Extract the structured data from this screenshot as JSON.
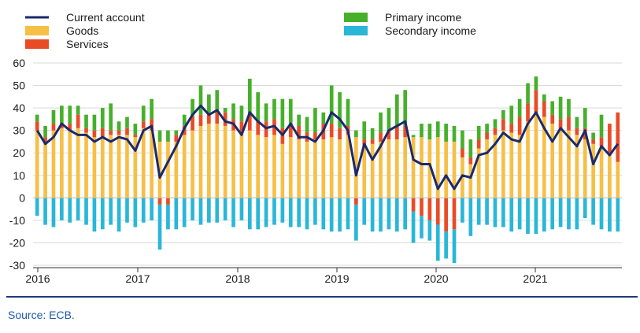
{
  "chart_data": {
    "type": "bar",
    "title": "",
    "xlabel": "",
    "ylabel": "",
    "ylim": [
      -30,
      60
    ],
    "yticks": [
      60,
      50,
      40,
      30,
      20,
      10,
      0,
      -10,
      -20,
      -30
    ],
    "xticks": [
      "2016",
      "2017",
      "2018",
      "2019",
      "2020",
      "2021"
    ],
    "periods": 72,
    "series": [
      {
        "name": "Current account",
        "kind": "line",
        "color": "#1b2a6b",
        "values": [
          30,
          24,
          27,
          33,
          30,
          28,
          28,
          25,
          27,
          25,
          27,
          26,
          21,
          30,
          32,
          9,
          16,
          23,
          31,
          37,
          41,
          37,
          39,
          34,
          33,
          28,
          38,
          34,
          31,
          32,
          28,
          33,
          27,
          27,
          25,
          30,
          38,
          35,
          30,
          10,
          24,
          17,
          23,
          30,
          32,
          34,
          17,
          15,
          15,
          4,
          10,
          4,
          10,
          9,
          19,
          20,
          24,
          29,
          26,
          25,
          33,
          38,
          31,
          25,
          31,
          27,
          23,
          30,
          15,
          23,
          19,
          24
        ]
      },
      {
        "name": "Goods",
        "kind": "stacked-bar",
        "color": "#f6bf46",
        "values": [
          30,
          25,
          30,
          31,
          30,
          31,
          29,
          27,
          27,
          28,
          28,
          28,
          27,
          31,
          30,
          25,
          25,
          25,
          28,
          30,
          32,
          33,
          33,
          32,
          30,
          29,
          30,
          28,
          27,
          28,
          24,
          27,
          26,
          25,
          26,
          26,
          27,
          26,
          28,
          27,
          23,
          24,
          25,
          26,
          26,
          27,
          27,
          27,
          26,
          27,
          25,
          25,
          18,
          15,
          22,
          26,
          28,
          30,
          29,
          28,
          34,
          38,
          36,
          33,
          30,
          30,
          28,
          26,
          24,
          23,
          20,
          16
        ]
      },
      {
        "name": "Services",
        "kind": "stacked-bar",
        "color": "#e94b25",
        "values": [
          4,
          2,
          3,
          2,
          3,
          6,
          2,
          3,
          4,
          2,
          2,
          3,
          1,
          3,
          5,
          -3,
          -3,
          3,
          4,
          6,
          5,
          5,
          5,
          6,
          5,
          5,
          7,
          6,
          7,
          7,
          7,
          5,
          6,
          4,
          3,
          7,
          6,
          5,
          4,
          -3,
          3,
          2,
          4,
          4,
          6,
          5,
          -6,
          -8,
          -10,
          -12,
          -15,
          -14,
          4,
          3,
          4,
          3,
          3,
          5,
          4,
          8,
          8,
          10,
          7,
          4,
          5,
          6,
          3,
          5,
          2,
          4,
          13,
          22
        ]
      },
      {
        "name": "Primary income",
        "kind": "stacked-bar",
        "color": "#46b02a",
        "values": [
          3,
          5,
          6,
          8,
          8,
          4,
          6,
          7,
          9,
          12,
          4,
          5,
          5,
          7,
          9,
          5,
          5,
          2,
          5,
          8,
          13,
          8,
          10,
          2,
          7,
          7,
          16,
          13,
          8,
          9,
          13,
          12,
          5,
          7,
          11,
          5,
          17,
          16,
          12,
          3,
          8,
          5,
          9,
          10,
          14,
          16,
          1,
          6,
          7,
          7,
          8,
          7,
          8,
          8,
          6,
          4,
          4,
          4,
          8,
          8,
          9,
          6,
          3,
          6,
          10,
          8,
          5,
          9,
          3,
          10,
          0,
          0
        ]
      },
      {
        "name": "Secondary income",
        "kind": "stacked-bar",
        "color": "#29b7d8",
        "values": [
          -8,
          -12,
          -13,
          -10,
          -11,
          -10,
          -12,
          -15,
          -14,
          -12,
          -15,
          -11,
          -13,
          -11,
          -10,
          -20,
          -11,
          -14,
          -13,
          -10,
          -12,
          -11,
          -11,
          -10,
          -13,
          -10,
          -14,
          -14,
          -13,
          -12,
          -11,
          -13,
          -13,
          -14,
          -12,
          -14,
          -15,
          -15,
          -14,
          -16,
          -12,
          -15,
          -15,
          -14,
          -15,
          -14,
          -14,
          -10,
          -9,
          -16,
          -12,
          -15,
          -11,
          -17,
          -12,
          -12,
          -13,
          -13,
          -15,
          -14,
          -16,
          -16,
          -15,
          -14,
          -13,
          -14,
          -14,
          -9,
          -12,
          -14,
          -15,
          -15
        ]
      }
    ],
    "source_note": "Source: ECB."
  }
}
